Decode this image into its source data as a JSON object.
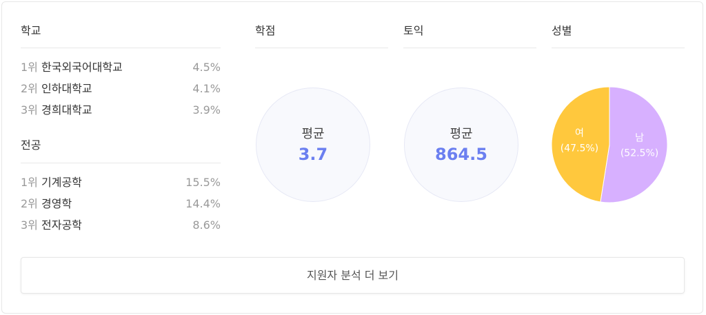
{
  "school": {
    "title": "학교",
    "items": [
      {
        "rank": "1위",
        "name": "한국외국어대학교",
        "pct": "4.5%"
      },
      {
        "rank": "2위",
        "name": "인하대학교",
        "pct": "4.1%"
      },
      {
        "rank": "3위",
        "name": "경희대학교",
        "pct": "3.9%"
      }
    ]
  },
  "major": {
    "title": "전공",
    "items": [
      {
        "rank": "1위",
        "name": "기계공학",
        "pct": "15.5%"
      },
      {
        "rank": "2위",
        "name": "경영학",
        "pct": "14.4%"
      },
      {
        "rank": "3위",
        "name": "전자공학",
        "pct": "8.6%"
      }
    ]
  },
  "gpa": {
    "title": "학점",
    "label": "평균",
    "value": "3.7"
  },
  "toeic": {
    "title": "토익",
    "label": "평균",
    "value": "864.5"
  },
  "gender": {
    "title": "성별",
    "slices": [
      {
        "label": "남",
        "pct_label": "(52.5%)",
        "value": 52.5,
        "color": "#d7b0ff"
      },
      {
        "label": "여",
        "pct_label": "(47.5%)",
        "value": 47.5,
        "color": "#ffc83d"
      }
    ]
  },
  "more_button": "지원자 분석 더 보기",
  "colors": {
    "accent": "#6b7ff0"
  }
}
